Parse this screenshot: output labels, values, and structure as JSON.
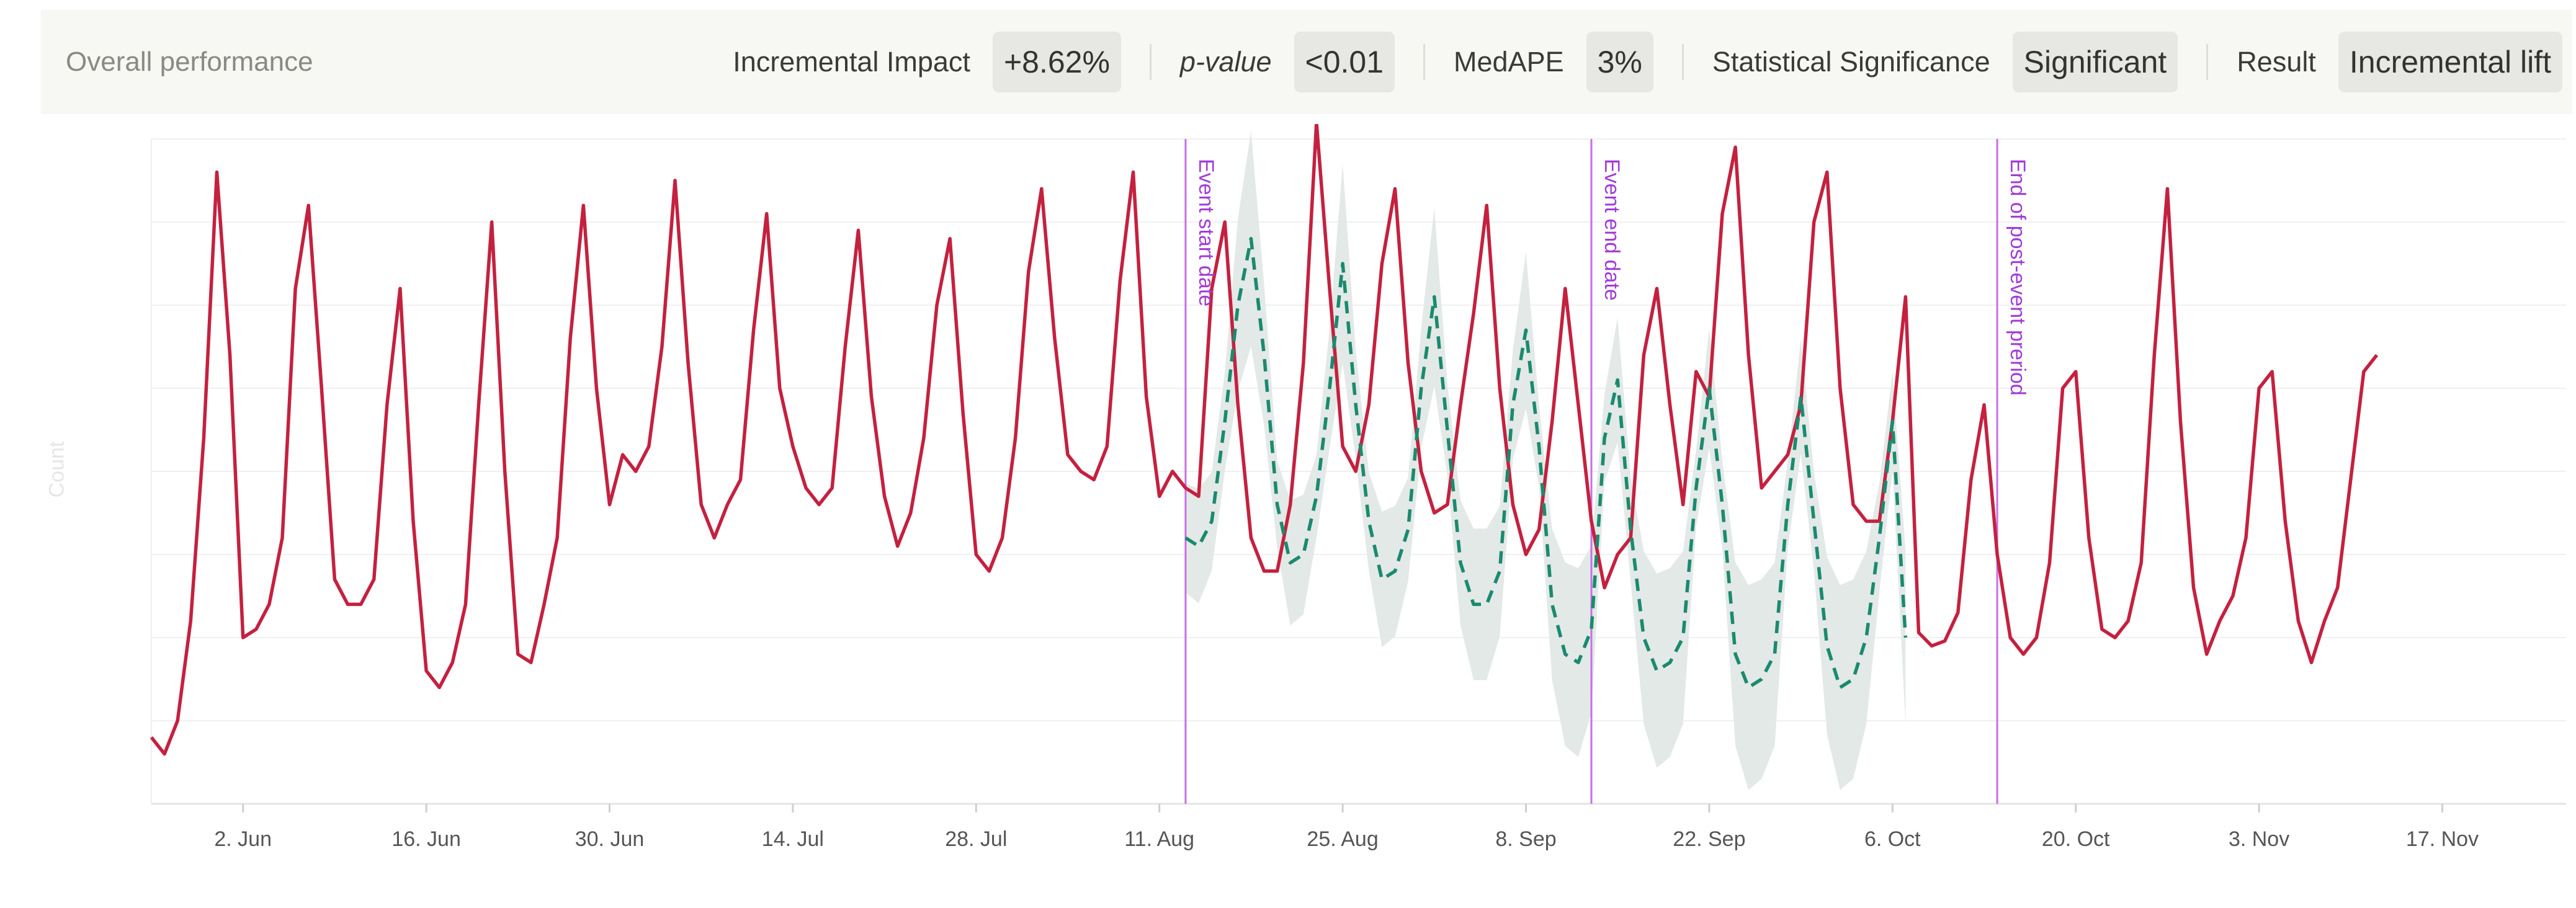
{
  "summary": {
    "title": "Overall performance",
    "metrics": [
      {
        "label": "Incremental Impact",
        "value": "+8.62%",
        "italic": false
      },
      {
        "label": "p-value",
        "value": "<0.01",
        "italic": true
      },
      {
        "label": "MedAPE",
        "value": "3%",
        "italic": false
      },
      {
        "label": "Statistical Significance",
        "value": "Significant",
        "italic": false
      },
      {
        "label": "Result",
        "value": "Incremental lift",
        "italic": false
      }
    ]
  },
  "colors": {
    "actual": "#c4213f",
    "predicted": "#1b8a6e",
    "band": "#e1e8e6",
    "marker": "#c86ee6",
    "markerText": "#a23bd6",
    "grid": "#f0f0f0",
    "axisText": "#555555"
  },
  "chart_data": {
    "type": "line",
    "ylabel": "Count",
    "x_start": "2024-05-26",
    "x_ticks": [
      "2. Jun",
      "16. Jun",
      "30. Jun",
      "14. Jul",
      "28. Jul",
      "11. Aug",
      "25. Aug",
      "8. Sep",
      "22. Sep",
      "6. Oct",
      "20. Oct",
      "3. Nov",
      "17. Nov"
    ],
    "event_markers": [
      {
        "label": "Event start date",
        "date": "2024-08-13"
      },
      {
        "label": "Event end date",
        "date": "2024-09-13"
      },
      {
        "label": "End of post-event preriod",
        "date": "2024-10-14"
      }
    ],
    "series": [
      {
        "name": "",
        "role": "actual",
        "x_start": "2024-05-26",
        "values": [
          24,
          23,
          25,
          31,
          42,
          58,
          47,
          30,
          30.5,
          32,
          36,
          51,
          56,
          45,
          33.5,
          32,
          32,
          33.5,
          44,
          51,
          37,
          28,
          27,
          28.5,
          32,
          44,
          55,
          40,
          29,
          28.5,
          32,
          36,
          48,
          56,
          45,
          38,
          41,
          40,
          41.5,
          47.5,
          57.5,
          46.5,
          38,
          36,
          38,
          39.5,
          48.5,
          55.5,
          45,
          41.5,
          39,
          38,
          39,
          47.5,
          54.5,
          44.5,
          38.5,
          35.5,
          37.5,
          42,
          50,
          54,
          43.5,
          35,
          34,
          36,
          42,
          52,
          57,
          48,
          41,
          40,
          39.5,
          41.5,
          51.5,
          58,
          44.5,
          38.5,
          40,
          39,
          38.5,
          51,
          55,
          44,
          36,
          34,
          34,
          38,
          46.5,
          61,
          51,
          41.5,
          40,
          44,
          52.5,
          57,
          46.5,
          40,
          37.5,
          38,
          44,
          49.5,
          56,
          45,
          38,
          35,
          36.5,
          43,
          51,
          44,
          37,
          33,
          35,
          36,
          47,
          51,
          44,
          38,
          46,
          44.5,
          55.5,
          59.5,
          47,
          39,
          40,
          41,
          44,
          55,
          58,
          45,
          38,
          37,
          37,
          43,
          50.5,
          30.3,
          29.5,
          29.8,
          31.5,
          39.5,
          44,
          35,
          30,
          29,
          30,
          34.5,
          45,
          46,
          36,
          30.5,
          30,
          31,
          34.5,
          47,
          57,
          43,
          33,
          29,
          31,
          32.5,
          36,
          45,
          46,
          37,
          31,
          28.5,
          31,
          33,
          39.5,
          46,
          47
        ]
      },
      {
        "name": "",
        "role": "predicted",
        "x_start": "2024-08-13",
        "values": [
          36,
          35.5,
          37,
          43,
          50,
          54,
          47,
          38,
          34.5,
          35,
          38.5,
          45,
          52.5,
          44,
          37,
          33.5,
          34,
          36.5,
          45,
          50.5,
          42.5,
          34.5,
          32,
          32,
          34,
          44,
          48.5,
          41.5,
          32,
          29,
          28.5,
          30.5,
          42,
          45.5,
          36.5,
          30,
          28,
          28.5,
          30,
          39,
          45,
          38,
          29,
          27,
          27.5,
          29,
          38,
          44.5,
          37,
          29.5,
          27,
          27.5,
          30,
          36,
          43,
          30
        ]
      }
    ]
  }
}
